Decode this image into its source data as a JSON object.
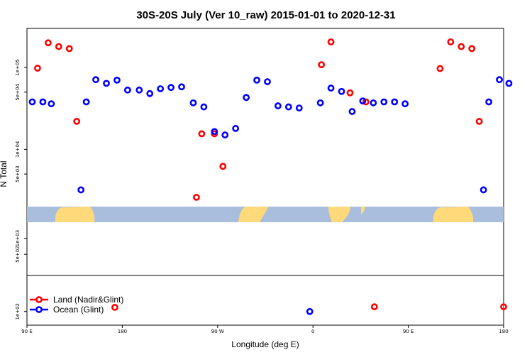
{
  "chart_data": {
    "type": "scatter",
    "title": "30S-20S July (Ver 10_raw)   2015-01-01 to 2020-12-31",
    "xlabel": "Longitude (deg E)",
    "ylabel": "N Total",
    "x_ticks": [
      "90 E",
      "180",
      "90 W",
      "0",
      "90 E",
      "180"
    ],
    "y_ticks_upper": [
      "1e+05",
      "5e+04",
      "1e+04",
      "5e+03"
    ],
    "y_ticks_middle": [
      "1e+03",
      "5e+02"
    ],
    "y_ticks_lower": [
      "1e+02"
    ],
    "ylim_upper": [
      2000,
      300000
    ],
    "ylim_middle": [
      200,
      2000
    ],
    "ylim_lower": [
      80,
      180
    ],
    "y_scale": "log",
    "legend_position": "bottom-left",
    "colors": {
      "land": "#ff0000",
      "ocean": "#0000ff",
      "map_ocean": "#a8bedc",
      "map_land": "#ffd97a"
    },
    "series": [
      {
        "name": "Land (Nadir&Glint)",
        "color": "#ff0000",
        "points": [
          {
            "x": 100,
            "y": 98000
          },
          {
            "x": 110,
            "y": 200000
          },
          {
            "x": 120,
            "y": 180000
          },
          {
            "x": 130,
            "y": 170000
          },
          {
            "x": 137,
            "y": 22000
          },
          {
            "x": 173,
            "y": 107
          },
          {
            "x": 250,
            "y": 2600
          },
          {
            "x": 255,
            "y": 15500
          },
          {
            "x": 267,
            "y": 15500
          },
          {
            "x": 275,
            "y": 6200
          },
          {
            "x": 368,
            "y": 108000
          },
          {
            "x": 377,
            "y": 205000
          },
          {
            "x": 395,
            "y": 49000
          },
          {
            "x": 410,
            "y": 38000
          },
          {
            "x": 418,
            "y": 108
          },
          {
            "x": 480,
            "y": 97000
          },
          {
            "x": 490,
            "y": 205000
          },
          {
            "x": 500,
            "y": 180000
          },
          {
            "x": 510,
            "y": 170000
          },
          {
            "x": 517,
            "y": 22000
          },
          {
            "x": 540,
            "y": 108
          }
        ]
      },
      {
        "name": "Ocean (Glint)",
        "color": "#0000ff",
        "points": [
          {
            "x": 95,
            "y": 38000
          },
          {
            "x": 105,
            "y": 38000
          },
          {
            "x": 113,
            "y": 36000
          },
          {
            "x": 141,
            "y": 3200
          },
          {
            "x": 146,
            "y": 38000
          },
          {
            "x": 155,
            "y": 71000
          },
          {
            "x": 165,
            "y": 64000
          },
          {
            "x": 175,
            "y": 70000
          },
          {
            "x": 185,
            "y": 53000
          },
          {
            "x": 196,
            "y": 53000
          },
          {
            "x": 206,
            "y": 48000
          },
          {
            "x": 216,
            "y": 55000
          },
          {
            "x": 226,
            "y": 57000
          },
          {
            "x": 236,
            "y": 58000
          },
          {
            "x": 247,
            "y": 37000
          },
          {
            "x": 257,
            "y": 33000
          },
          {
            "x": 267,
            "y": 16500
          },
          {
            "x": 277,
            "y": 15000
          },
          {
            "x": 287,
            "y": 18000
          },
          {
            "x": 297,
            "y": 43000
          },
          {
            "x": 307,
            "y": 70000
          },
          {
            "x": 317,
            "y": 67000
          },
          {
            "x": 327,
            "y": 34000
          },
          {
            "x": 337,
            "y": 33000
          },
          {
            "x": 347,
            "y": 32000
          },
          {
            "x": 357,
            "y": 100
          },
          {
            "x": 367,
            "y": 37000
          },
          {
            "x": 377,
            "y": 56000
          },
          {
            "x": 387,
            "y": 51000
          },
          {
            "x": 397,
            "y": 29000
          },
          {
            "x": 407,
            "y": 39000
          },
          {
            "x": 417,
            "y": 37000
          },
          {
            "x": 427,
            "y": 38000
          },
          {
            "x": 437,
            "y": 38000
          },
          {
            "x": 447,
            "y": 36000
          },
          {
            "x": 521,
            "y": 3200
          },
          {
            "x": 526,
            "y": 38000
          },
          {
            "x": 536,
            "y": 71000
          },
          {
            "x": 545,
            "y": 64000
          }
        ]
      }
    ]
  }
}
